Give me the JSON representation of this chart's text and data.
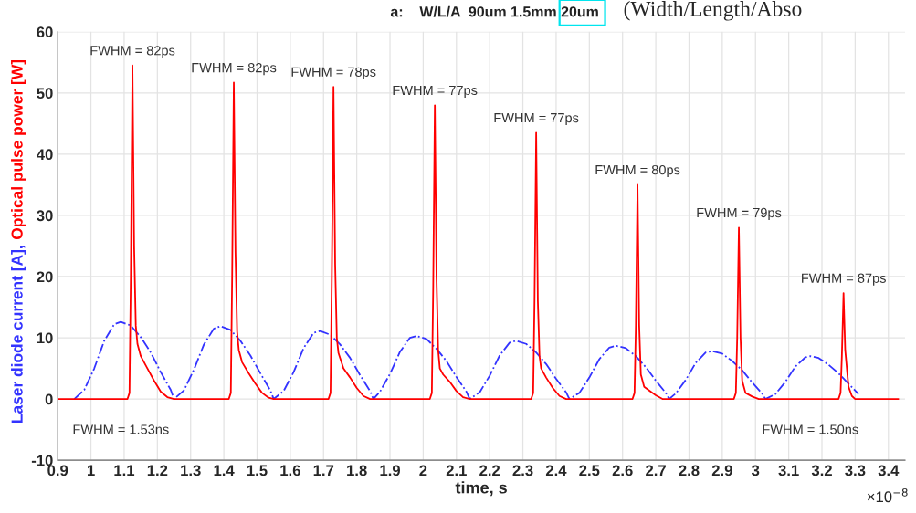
{
  "chart_data": {
    "type": "line",
    "title": "a:    W/L/A  90um 1.5mm 20um",
    "xlabel": "time, s",
    "xlim": [
      0.9,
      3.45
    ],
    "ylim": [
      -10,
      60
    ],
    "xticks": [
      0.9,
      1,
      1.1,
      1.2,
      1.3,
      1.4,
      1.5,
      1.6,
      1.7,
      1.8,
      1.9,
      2,
      2.1,
      2.2,
      2.3,
      2.4,
      2.5,
      2.6,
      2.7,
      2.8,
      2.9,
      3,
      3.1,
      3.2,
      3.3,
      3.4
    ],
    "yticks": [
      -10,
      0,
      10,
      20,
      30,
      40,
      50,
      60
    ],
    "grid": true,
    "legend": false,
    "marker": "none",
    "series": [
      {
        "name": "Laser diode current [A],",
        "color": "#3333ff",
        "line_style": "dashdot",
        "x": [
          0.95,
          0.98,
          1.01,
          1.04,
          1.07,
          1.09,
          1.12,
          1.15,
          1.18,
          1.21,
          1.24,
          1.25,
          1.28,
          1.31,
          1.34,
          1.37,
          1.39,
          1.42,
          1.45,
          1.48,
          1.51,
          1.54,
          1.55,
          1.58,
          1.61,
          1.64,
          1.67,
          1.69,
          1.72,
          1.75,
          1.78,
          1.81,
          1.84,
          1.85,
          1.87,
          1.9,
          1.93,
          1.96,
          1.98,
          2.01,
          2.04,
          2.07,
          2.1,
          2.13,
          2.14,
          2.17,
          2.2,
          2.23,
          2.26,
          2.28,
          2.31,
          2.34,
          2.37,
          2.4,
          2.43,
          2.44,
          2.47,
          2.5,
          2.53,
          2.56,
          2.58,
          2.61,
          2.64,
          2.67,
          2.7,
          2.73,
          2.74,
          2.76,
          2.79,
          2.82,
          2.85,
          2.87,
          2.9,
          2.93,
          2.96,
          2.99,
          3.02,
          3.03,
          3.06,
          3.09,
          3.12,
          3.15,
          3.165,
          3.19,
          3.22,
          3.25,
          3.28,
          3.31
        ],
        "values": [
          0,
          1.5,
          5.0,
          9.5,
          12.2,
          12.6,
          12.0,
          10.1,
          7.6,
          4.4,
          1.5,
          0,
          1.4,
          4.8,
          8.9,
          11.5,
          11.9,
          11.3,
          9.5,
          7.1,
          4.2,
          1.4,
          0,
          1.3,
          4.4,
          8.3,
          10.8,
          11.1,
          10.5,
          8.9,
          6.7,
          3.9,
          1.3,
          0,
          1.2,
          4.1,
          7.7,
          10.0,
          10.3,
          9.8,
          8.2,
          6.2,
          3.6,
          1.2,
          0,
          1.1,
          3.8,
          7.1,
          9.2,
          9.5,
          9.0,
          7.6,
          5.7,
          3.3,
          1.1,
          0,
          1.0,
          3.5,
          6.5,
          8.4,
          8.7,
          8.3,
          7.0,
          5.2,
          3.0,
          1.0,
          0,
          0.9,
          3.1,
          5.9,
          7.6,
          7.8,
          7.4,
          6.2,
          4.7,
          2.7,
          0.9,
          0,
          0.8,
          2.8,
          5.3,
          6.8,
          7.0,
          6.7,
          5.6,
          4.2,
          2.5,
          0.8
        ]
      },
      {
        "name": "Optical pulse power [W]",
        "color": "#ff0000",
        "line_style": "solid",
        "x": [
          0.9,
          1.11,
          1.116,
          1.12,
          1.125,
          1.13,
          1.135,
          1.14,
          1.15,
          1.17,
          1.19,
          1.21,
          1.23,
          1.25,
          1.415,
          1.421,
          1.425,
          1.43,
          1.435,
          1.44,
          1.445,
          1.455,
          1.475,
          1.495,
          1.515,
          1.535,
          1.55,
          1.715,
          1.721,
          1.725,
          1.73,
          1.735,
          1.74,
          1.745,
          1.76,
          1.78,
          1.8,
          1.82,
          1.84,
          2.02,
          2.026,
          2.03,
          2.035,
          2.04,
          2.045,
          2.05,
          2.06,
          2.08,
          2.1,
          2.12,
          2.14,
          2.325,
          2.331,
          2.335,
          2.34,
          2.345,
          2.35,
          2.355,
          2.37,
          2.39,
          2.41,
          2.43,
          2.63,
          2.636,
          2.64,
          2.645,
          2.65,
          2.655,
          2.665,
          2.68,
          2.7,
          2.72,
          2.935,
          2.941,
          2.945,
          2.95,
          2.955,
          2.96,
          2.97,
          2.99,
          3.01,
          3.25,
          3.256,
          3.26,
          3.265,
          3.27,
          3.28,
          3.29,
          3.3,
          3.43
        ],
        "values": [
          0,
          0,
          1,
          20,
          54.5,
          25,
          12,
          9,
          7,
          5,
          3,
          1.2,
          0.3,
          0,
          0,
          1,
          20,
          51.7,
          24,
          11,
          8,
          6,
          4.2,
          2.5,
          1,
          0.2,
          0,
          0,
          1,
          20,
          51,
          22,
          10,
          7.5,
          5,
          3.5,
          1.8,
          0.5,
          0,
          0,
          1,
          18,
          48,
          20,
          8,
          5,
          4,
          2.8,
          1.3,
          0.3,
          0,
          0,
          1,
          16,
          43.5,
          16,
          7,
          5,
          3.5,
          1.8,
          0.5,
          0,
          0,
          1,
          12,
          35,
          12,
          4,
          2,
          1.4,
          0.6,
          0,
          0,
          1,
          10,
          28,
          10,
          3,
          1,
          0.4,
          0,
          0,
          1,
          7,
          17.3,
          8,
          2,
          0.5,
          0,
          0
        ]
      }
    ],
    "annotations": [
      "(Width/Length/Abso",
      "×10$^{−8}$",
      {
        "text": "FWHM = 82ps",
        "x": 1.125,
        "y": 54.5
      },
      {
        "text": "FWHM = 82ps",
        "x": 1.43,
        "y": 51.7
      },
      {
        "text": "FWHM = 78ps",
        "x": 1.73,
        "y": 51
      },
      {
        "text": "FWHM = 77ps",
        "x": 2.035,
        "y": 48
      },
      {
        "text": "FWHM = 77ps",
        "x": 2.34,
        "y": 43.5
      },
      {
        "text": "FWHM = 80ps",
        "x": 2.645,
        "y": 35
      },
      {
        "text": "FWHM = 79ps",
        "x": 2.95,
        "y": 28
      },
      {
        "text": "FWHM = 87ps",
        "x": 3.265,
        "y": 17.3
      },
      {
        "text": "FWHM = 1.53ns",
        "x": 1.09,
        "y": 0
      },
      {
        "text": "FWHM = 1.50ns",
        "x": 3.165,
        "y": 0
      }
    ]
  }
}
